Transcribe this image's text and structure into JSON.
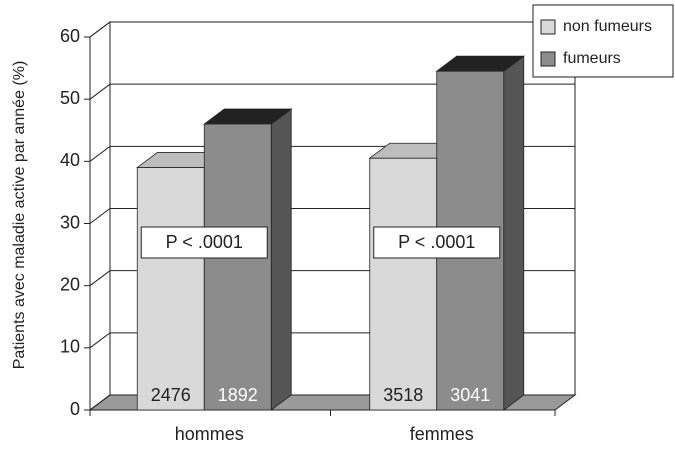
{
  "chart_data": {
    "type": "bar3d",
    "y_label": "Patients avec maladie active par année (%)",
    "categories": [
      "hommes",
      "femmes"
    ],
    "series": [
      {
        "name": "non fumeurs",
        "color": "#d9d9d9",
        "values": [
          39,
          40.5
        ],
        "sample_sizes": [
          2476,
          3518
        ]
      },
      {
        "name": "fumeurs",
        "color": "#8c8c8c",
        "values": [
          46,
          54.5
        ],
        "sample_sizes": [
          1892,
          3041
        ]
      }
    ],
    "annotations": [
      "P < .0001",
      "P < .0001"
    ],
    "ylim": [
      0,
      60
    ],
    "yticks": [
      0,
      10,
      20,
      30,
      40,
      50,
      60
    ],
    "grid": true,
    "legend": "top-right"
  }
}
